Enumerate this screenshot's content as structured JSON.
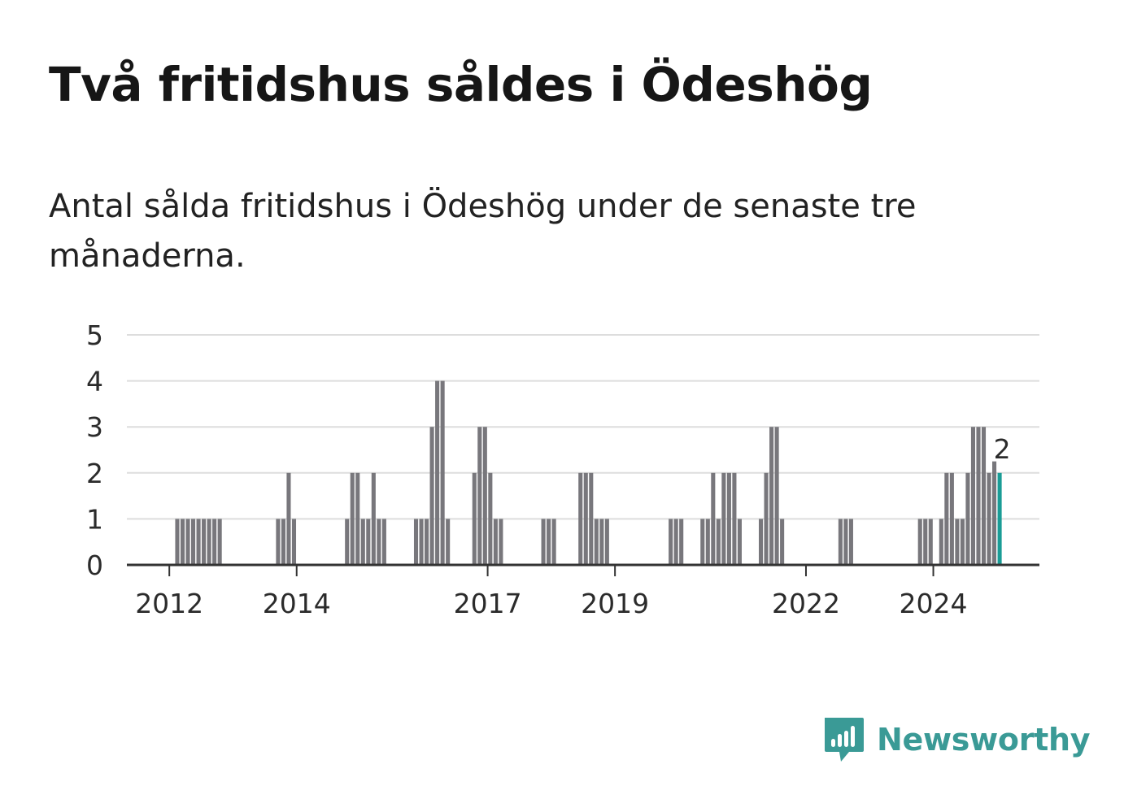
{
  "title": "Två fritidshus såldes i Ödeshög",
  "subtitle": "Antal sålda fritidshus i Ödeshög under de senaste tre månaderna.",
  "brand": {
    "name": "Newsworthy",
    "icon": "newsworthy-logo-icon",
    "color": "#3a9a96"
  },
  "colors": {
    "bar": "#78777c",
    "highlight": "#1a9c96",
    "grid": "#dddddd",
    "axis": "#333333"
  },
  "chart_data": {
    "type": "bar",
    "title": "",
    "xlabel": "",
    "ylabel": "",
    "ylim": [
      0,
      5
    ],
    "y_ticks": [
      0,
      1,
      2,
      3,
      4,
      5
    ],
    "x_ticks": [
      "2012",
      "2014",
      "2017",
      "2019",
      "2022",
      "2024"
    ],
    "x_tick_months": [
      "2012-01",
      "2014-01",
      "2017-01",
      "2019-01",
      "2022-01",
      "2024-01"
    ],
    "x_start": "2011-05",
    "x_end": "2025-09",
    "grid": true,
    "highlight_label": "2",
    "bars": [
      {
        "month": "2012-02",
        "value": 1
      },
      {
        "month": "2012-03",
        "value": 1
      },
      {
        "month": "2012-04",
        "value": 1
      },
      {
        "month": "2012-05",
        "value": 1
      },
      {
        "month": "2012-06",
        "value": 1
      },
      {
        "month": "2012-07",
        "value": 1
      },
      {
        "month": "2012-08",
        "value": 1
      },
      {
        "month": "2012-09",
        "value": 1
      },
      {
        "month": "2012-10",
        "value": 1
      },
      {
        "month": "2013-09",
        "value": 1
      },
      {
        "month": "2013-10",
        "value": 1
      },
      {
        "month": "2013-11",
        "value": 2
      },
      {
        "month": "2013-12",
        "value": 1
      },
      {
        "month": "2014-10",
        "value": 1
      },
      {
        "month": "2014-11",
        "value": 2
      },
      {
        "month": "2014-12",
        "value": 2
      },
      {
        "month": "2015-01",
        "value": 1
      },
      {
        "month": "2015-02",
        "value": 1
      },
      {
        "month": "2015-03",
        "value": 2
      },
      {
        "month": "2015-04",
        "value": 1
      },
      {
        "month": "2015-05",
        "value": 1
      },
      {
        "month": "2015-11",
        "value": 1
      },
      {
        "month": "2015-12",
        "value": 1
      },
      {
        "month": "2016-01",
        "value": 1
      },
      {
        "month": "2016-02",
        "value": 3
      },
      {
        "month": "2016-03",
        "value": 4
      },
      {
        "month": "2016-04",
        "value": 4
      },
      {
        "month": "2016-05",
        "value": 1
      },
      {
        "month": "2016-10",
        "value": 2
      },
      {
        "month": "2016-11",
        "value": 3
      },
      {
        "month": "2016-12",
        "value": 3
      },
      {
        "month": "2017-01",
        "value": 2
      },
      {
        "month": "2017-02",
        "value": 1
      },
      {
        "month": "2017-03",
        "value": 1
      },
      {
        "month": "2017-11",
        "value": 1
      },
      {
        "month": "2017-12",
        "value": 1
      },
      {
        "month": "2018-01",
        "value": 1
      },
      {
        "month": "2018-06",
        "value": 2
      },
      {
        "month": "2018-07",
        "value": 2
      },
      {
        "month": "2018-08",
        "value": 2
      },
      {
        "month": "2018-09",
        "value": 1
      },
      {
        "month": "2018-10",
        "value": 1
      },
      {
        "month": "2018-11",
        "value": 1
      },
      {
        "month": "2019-11",
        "value": 1
      },
      {
        "month": "2019-12",
        "value": 1
      },
      {
        "month": "2020-01",
        "value": 1
      },
      {
        "month": "2020-05",
        "value": 1
      },
      {
        "month": "2020-06",
        "value": 1
      },
      {
        "month": "2020-07",
        "value": 2
      },
      {
        "month": "2020-08",
        "value": 1
      },
      {
        "month": "2020-09",
        "value": 2
      },
      {
        "month": "2020-10",
        "value": 2
      },
      {
        "month": "2020-11",
        "value": 2
      },
      {
        "month": "2020-12",
        "value": 1
      },
      {
        "month": "2021-04",
        "value": 1
      },
      {
        "month": "2021-05",
        "value": 2
      },
      {
        "month": "2021-06",
        "value": 3
      },
      {
        "month": "2021-07",
        "value": 3
      },
      {
        "month": "2021-08",
        "value": 1
      },
      {
        "month": "2022-07",
        "value": 1
      },
      {
        "month": "2022-08",
        "value": 1
      },
      {
        "month": "2022-09",
        "value": 1
      },
      {
        "month": "2023-10",
        "value": 1
      },
      {
        "month": "2023-11",
        "value": 1
      },
      {
        "month": "2023-12",
        "value": 1
      },
      {
        "month": "2024-02",
        "value": 1
      },
      {
        "month": "2024-03",
        "value": 2
      },
      {
        "month": "2024-04",
        "value": 2
      },
      {
        "month": "2024-05",
        "value": 1
      },
      {
        "month": "2024-06",
        "value": 1
      },
      {
        "month": "2024-07",
        "value": 2
      },
      {
        "month": "2024-08",
        "value": 3
      },
      {
        "month": "2024-09",
        "value": 3
      },
      {
        "month": "2024-10",
        "value": 3
      },
      {
        "month": "2024-11",
        "value": 2
      },
      {
        "month": "2024-12",
        "value": 2.25
      },
      {
        "month": "2025-01",
        "value": 2,
        "highlight": true
      }
    ]
  }
}
